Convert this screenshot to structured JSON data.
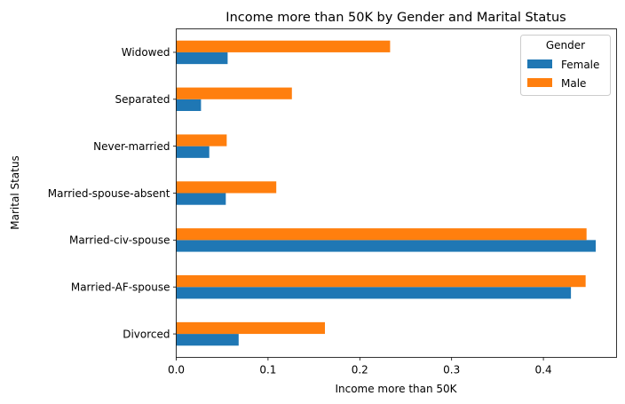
{
  "chart_data": {
    "type": "bar",
    "orientation": "horizontal",
    "title": "Income more than 50K by Gender and Marital Status",
    "xlabel": "Income more than 50K",
    "ylabel": "Marital Status",
    "xlim": [
      0,
      0.4797
    ],
    "xticks": [
      "0.0",
      "0.1",
      "0.2",
      "0.3",
      "0.4"
    ],
    "categories": [
      "Divorced",
      "Married-AF-spouse",
      "Married-civ-spouse",
      "Married-spouse-absent",
      "Never-married",
      "Separated",
      "Widowed"
    ],
    "series": [
      {
        "name": "Female",
        "color": "#1f77b4",
        "values": [
          0.068,
          0.43,
          0.457,
          0.054,
          0.036,
          0.027,
          0.056
        ]
      },
      {
        "name": "Male",
        "color": "#ff7f0e",
        "values": [
          0.162,
          0.446,
          0.447,
          0.109,
          0.055,
          0.126,
          0.233
        ]
      }
    ],
    "legend": {
      "title": "Gender",
      "placement": "top-right"
    },
    "grid": false
  }
}
